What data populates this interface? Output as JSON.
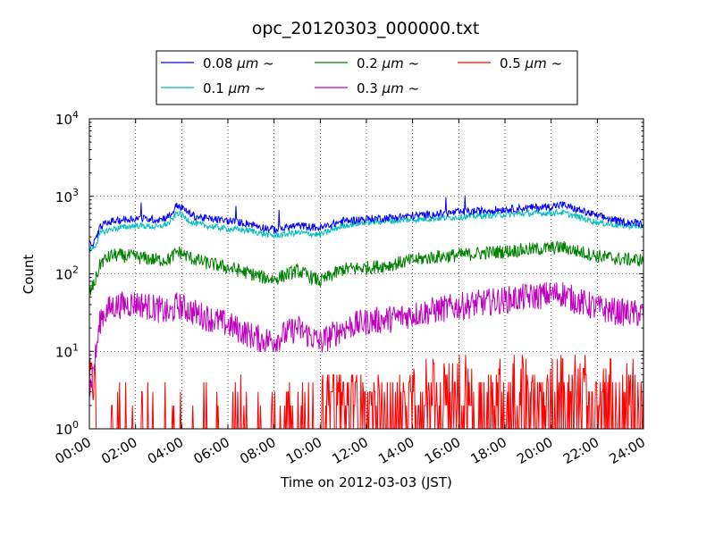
{
  "chart_data": {
    "type": "line",
    "title": "opc_20120303_000000.txt",
    "xlabel": "Time on 2012-03-03 (JST)",
    "ylabel": "Count",
    "yscale": "log",
    "ylim": [
      1,
      10000
    ],
    "xlim": [
      "00:00",
      "24:00"
    ],
    "x_ticks": [
      "00:00",
      "02:00",
      "04:00",
      "06:00",
      "08:00",
      "10:00",
      "12:00",
      "14:00",
      "16:00",
      "18:00",
      "20:00",
      "22:00",
      "24:00"
    ],
    "y_ticks": [
      {
        "value": 1,
        "base": "10",
        "exp": "0"
      },
      {
        "value": 10,
        "base": "10",
        "exp": "1"
      },
      {
        "value": 100,
        "base": "10",
        "exp": "2"
      },
      {
        "value": 1000,
        "base": "10",
        "exp": "3"
      },
      {
        "value": 10000,
        "base": "10",
        "exp": "4"
      }
    ],
    "grid": true,
    "legend_position": "top-center",
    "x_hours": [
      0,
      0.25,
      0.5,
      1,
      2,
      3,
      3.5,
      3.8,
      4.5,
      5,
      6,
      7,
      7.5,
      8,
      9,
      10,
      11,
      12,
      13,
      14,
      15,
      16,
      17,
      18,
      19,
      20,
      20.5,
      21,
      22,
      23,
      24
    ],
    "series": [
      {
        "name": "0.08",
        "unit": "μm",
        "suffix": "~",
        "color": "#0000ff",
        "values": [
          240,
          260,
          420,
          480,
          520,
          500,
          560,
          780,
          560,
          520,
          480,
          440,
          400,
          370,
          420,
          390,
          480,
          510,
          530,
          560,
          590,
          620,
          650,
          680,
          710,
          740,
          780,
          690,
          560,
          470,
          450
        ]
      },
      {
        "name": "0.1",
        "unit": "μm",
        "suffix": "~",
        "color": "#00bfbf",
        "values": [
          200,
          230,
          340,
          380,
          420,
          400,
          460,
          620,
          450,
          420,
          380,
          360,
          330,
          310,
          340,
          320,
          420,
          460,
          480,
          500,
          520,
          540,
          560,
          580,
          600,
          610,
          620,
          560,
          460,
          420,
          410
        ]
      },
      {
        "name": "0.2",
        "unit": "μm",
        "suffix": "~",
        "color": "#008000",
        "values": [
          55,
          80,
          140,
          175,
          165,
          150,
          155,
          195,
          155,
          140,
          120,
          100,
          90,
          85,
          110,
          80,
          115,
          120,
          130,
          150,
          165,
          175,
          185,
          195,
          205,
          215,
          220,
          200,
          170,
          155,
          150
        ]
      },
      {
        "name": "0.3",
        "unit": "μm",
        "suffix": "~",
        "color": "#bf00bf",
        "values": [
          3,
          8,
          28,
          38,
          42,
          35,
          30,
          40,
          32,
          28,
          22,
          16,
          14,
          14,
          20,
          13,
          20,
          24,
          26,
          30,
          34,
          38,
          42,
          46,
          50,
          54,
          56,
          46,
          36,
          32,
          30
        ]
      },
      {
        "name": "0.5",
        "unit": "μm",
        "suffix": "~",
        "color": "#ff0000",
        "values": [
          1,
          1,
          1.5,
          1.5,
          1.5,
          1.5,
          1.5,
          1.5,
          1.5,
          1.5,
          1.5,
          1.5,
          1.5,
          1.5,
          1.5,
          1.5,
          1.8,
          2,
          2,
          2,
          2,
          2,
          2,
          2.2,
          2.4,
          2.6,
          2.6,
          2.4,
          2,
          1.8,
          1.8
        ]
      }
    ]
  }
}
